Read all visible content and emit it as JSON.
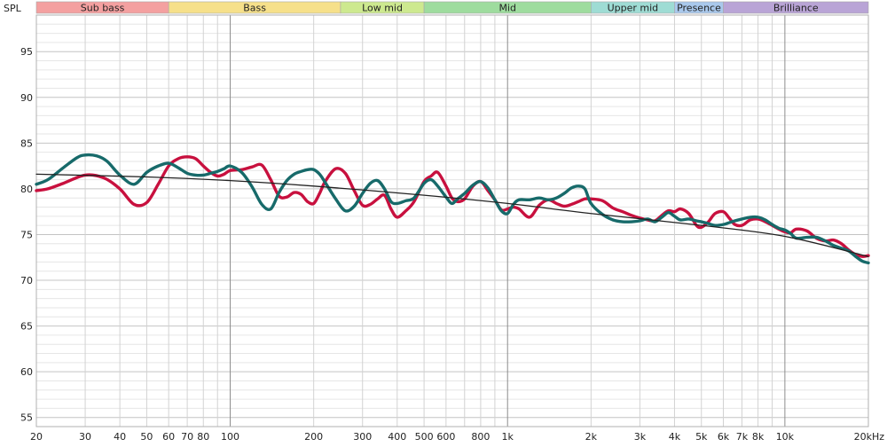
{
  "chart_data": {
    "type": "line",
    "ylabel": "SPL",
    "x_unit": "kHz",
    "x_scale": "log",
    "xlim": [
      20,
      20000
    ],
    "ylim": [
      54,
      99
    ],
    "grid": true,
    "y_ticks": [
      55,
      60,
      65,
      70,
      75,
      80,
      85,
      90,
      95
    ],
    "x_ticks": [
      {
        "value": 20,
        "label": "20"
      },
      {
        "value": 30,
        "label": "30"
      },
      {
        "value": 40,
        "label": "40"
      },
      {
        "value": 50,
        "label": "50"
      },
      {
        "value": 60,
        "label": "60"
      },
      {
        "value": 70,
        "label": "70"
      },
      {
        "value": 80,
        "label": "80"
      },
      {
        "value": 100,
        "label": "100"
      },
      {
        "value": 200,
        "label": "200"
      },
      {
        "value": 300,
        "label": "300"
      },
      {
        "value": 400,
        "label": "400"
      },
      {
        "value": 500,
        "label": "500"
      },
      {
        "value": 600,
        "label": "600"
      },
      {
        "value": 800,
        "label": "800"
      },
      {
        "value": 1000,
        "label": "1k"
      },
      {
        "value": 2000,
        "label": "2k"
      },
      {
        "value": 3000,
        "label": "3k"
      },
      {
        "value": 4000,
        "label": "4k"
      },
      {
        "value": 5000,
        "label": "5k"
      },
      {
        "value": 6000,
        "label": "6k"
      },
      {
        "value": 7000,
        "label": "7k"
      },
      {
        "value": 8000,
        "label": "8k"
      },
      {
        "value": 10000,
        "label": "10k"
      },
      {
        "value": 20000,
        "label": "20kHz"
      }
    ],
    "bands": [
      {
        "label": "Sub bass",
        "from": 20,
        "to": 60,
        "color": "#f4a0a0"
      },
      {
        "label": "Bass",
        "from": 60,
        "to": 250,
        "color": "#f6e08a"
      },
      {
        "label": "Low mid",
        "from": 250,
        "to": 500,
        "color": "#cde98f"
      },
      {
        "label": "Mid",
        "from": 500,
        "to": 2000,
        "color": "#9edc9e"
      },
      {
        "label": "Upper mid",
        "from": 2000,
        "to": 4000,
        "color": "#9edcd4"
      },
      {
        "label": "Presence",
        "from": 4000,
        "to": 6000,
        "color": "#a9c8ec"
      },
      {
        "label": "Brilliance",
        "from": 6000,
        "to": 20000,
        "color": "#b9a4d6"
      }
    ],
    "series": [
      {
        "color": "#c8103e",
        "x": [
          20,
          22,
          25,
          30,
          35,
          40,
          45,
          50,
          55,
          60,
          65,
          70,
          75,
          80,
          85,
          90,
          95,
          100,
          110,
          120,
          130,
          140,
          150,
          160,
          170,
          180,
          190,
          200,
          210,
          220,
          240,
          260,
          280,
          300,
          320,
          340,
          360,
          380,
          400,
          430,
          460,
          500,
          530,
          560,
          600,
          630,
          660,
          700,
          750,
          800,
          850,
          900,
          950,
          1000,
          1050,
          1100,
          1200,
          1300,
          1400,
          1500,
          1600,
          1700,
          1800,
          1900,
          2000,
          2200,
          2400,
          2600,
          2800,
          3000,
          3200,
          3400,
          3600,
          3800,
          4000,
          4200,
          4500,
          4800,
          5000,
          5300,
          5600,
          6000,
          6300,
          6600,
          7000,
          7500,
          8000,
          8500,
          9000,
          9500,
          10000,
          10500,
          11000,
          12000,
          13000,
          14000,
          15000,
          16000,
          17000,
          18000,
          19000,
          20000
        ],
        "y": [
          79.8,
          80,
          80.6,
          81.5,
          81.2,
          80,
          78.3,
          78.5,
          80.5,
          82.5,
          83.3,
          83.5,
          83.3,
          82.5,
          81.8,
          81.4,
          81.6,
          82,
          82.1,
          82.4,
          82.6,
          81,
          79.2,
          79.1,
          79.6,
          79.4,
          78.6,
          78.4,
          79.5,
          80.8,
          82.2,
          81.7,
          79.8,
          78.2,
          78.3,
          78.9,
          79.3,
          77.8,
          76.9,
          77.6,
          78.6,
          80.8,
          81.4,
          81.8,
          80.3,
          79.0,
          78.6,
          78.9,
          80.3,
          80.8,
          79.8,
          78.8,
          77.7,
          77.8,
          78.0,
          77.8,
          76.9,
          78.2,
          78.8,
          78.4,
          78.1,
          78.3,
          78.6,
          78.9,
          78.9,
          78.7,
          77.9,
          77.5,
          77.1,
          76.8,
          76.6,
          76.5,
          77.1,
          77.6,
          77.5,
          77.8,
          77.3,
          76.0,
          75.8,
          76.4,
          77.3,
          77.5,
          76.8,
          76.1,
          76.0,
          76.6,
          76.7,
          76.4,
          76.0,
          75.6,
          75.3,
          75.2,
          75.6,
          75.4,
          74.6,
          74.3,
          74.4,
          74.0,
          73.3,
          72.8,
          72.6,
          72.7
        ]
      },
      {
        "color": "#176a6a",
        "x": [
          20,
          22,
          25,
          28,
          30,
          33,
          36,
          40,
          45,
          50,
          55,
          60,
          65,
          70,
          75,
          80,
          85,
          90,
          95,
          100,
          110,
          120,
          130,
          140,
          150,
          160,
          170,
          180,
          190,
          200,
          210,
          220,
          240,
          260,
          280,
          300,
          320,
          340,
          360,
          380,
          400,
          430,
          460,
          500,
          530,
          560,
          600,
          630,
          660,
          700,
          750,
          800,
          850,
          900,
          950,
          1000,
          1050,
          1100,
          1200,
          1300,
          1400,
          1500,
          1600,
          1700,
          1800,
          1900,
          2000,
          2200,
          2400,
          2600,
          2800,
          3000,
          3200,
          3400,
          3600,
          3800,
          4000,
          4200,
          4500,
          4800,
          5000,
          5300,
          5600,
          6000,
          6300,
          6600,
          7000,
          7500,
          8000,
          8500,
          9000,
          9500,
          10000,
          10500,
          11000,
          12000,
          13000,
          14000,
          15000,
          16000,
          17000,
          18000,
          19000,
          20000
        ],
        "y": [
          80.5,
          81,
          82.3,
          83.4,
          83.7,
          83.6,
          83.0,
          81.5,
          80.5,
          81.8,
          82.5,
          82.8,
          82.3,
          81.7,
          81.5,
          81.5,
          81.7,
          81.9,
          82.2,
          82.5,
          81.8,
          80.2,
          78.3,
          77.8,
          79.6,
          80.9,
          81.6,
          81.9,
          82.1,
          82.1,
          81.6,
          80.7,
          78.9,
          77.6,
          78.1,
          79.5,
          80.6,
          80.9,
          80.0,
          78.6,
          78.4,
          78.7,
          79.0,
          80.6,
          81.0,
          80.3,
          79.1,
          78.4,
          78.9,
          79.5,
          80.4,
          80.8,
          80.1,
          78.8,
          77.6,
          77.3,
          78.3,
          78.8,
          78.8,
          79.0,
          78.8,
          79.0,
          79.5,
          80.1,
          80.3,
          80.0,
          78.4,
          77.2,
          76.6,
          76.4,
          76.4,
          76.5,
          76.7,
          76.4,
          76.9,
          77.4,
          77.0,
          76.6,
          76.7,
          76.5,
          76.4,
          76.2,
          76.0,
          76.1,
          76.3,
          76.5,
          76.7,
          76.9,
          76.9,
          76.6,
          76.1,
          75.7,
          75.5,
          75.1,
          74.6,
          74.7,
          74.7,
          74.3,
          73.8,
          73.5,
          73.2,
          72.6,
          72.1,
          71.9
        ]
      },
      {
        "color": "#222222",
        "x": [
          20,
          50,
          100,
          200,
          500,
          1000,
          2000,
          5000,
          10000,
          20000
        ],
        "y": [
          81.6,
          81.3,
          80.9,
          80.3,
          79.3,
          78.4,
          77.3,
          76.0,
          74.8,
          72.6
        ]
      }
    ]
  }
}
